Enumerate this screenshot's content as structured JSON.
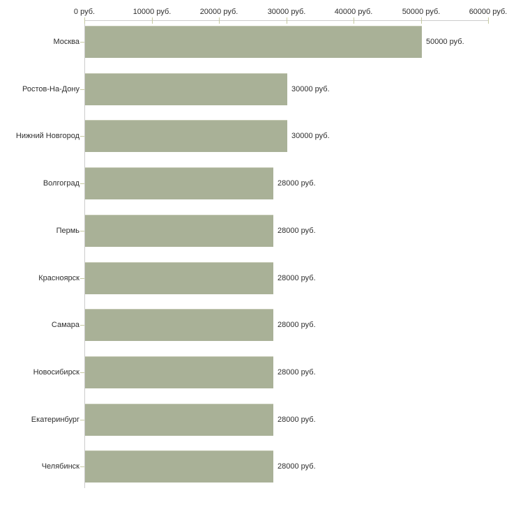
{
  "chart_data": {
    "type": "bar",
    "orientation": "horizontal",
    "title": "",
    "categories": [
      "Москва",
      "Ростов-На-Дону",
      "Нижний Новгород",
      "Волгоград",
      "Пермь",
      "Красноярск",
      "Самара",
      "Новосибирск",
      "Екатеринбург",
      "Челябинск"
    ],
    "values": [
      50000,
      30000,
      30000,
      28000,
      28000,
      28000,
      28000,
      28000,
      28000,
      28000
    ],
    "value_labels": [
      "50000 руб.",
      "30000 руб.",
      "30000 руб.",
      "28000 руб.",
      "28000 руб.",
      "28000 руб.",
      "28000 руб.",
      "28000 руб.",
      "28000 руб.",
      "28000 руб."
    ],
    "x_axis": {
      "min": 0,
      "max": 60000,
      "tick_step": 10000,
      "unit": "руб.",
      "tick_labels": [
        "0 руб.",
        "10000 руб.",
        "20000 руб.",
        "30000 руб.",
        "40000 руб.",
        "50000 руб.",
        "60000 руб."
      ],
      "position": "top"
    },
    "y_axis": {
      "position": "left"
    },
    "legend": "none",
    "grid": "off",
    "colors": {
      "bar_fill": "#a9b197",
      "bar_top_edge": "#c3c8b2",
      "axis_line": "#cccccc",
      "tick_mark": "#c5c9a0",
      "text": "#2e2e2e",
      "background": "#ffffff"
    }
  }
}
